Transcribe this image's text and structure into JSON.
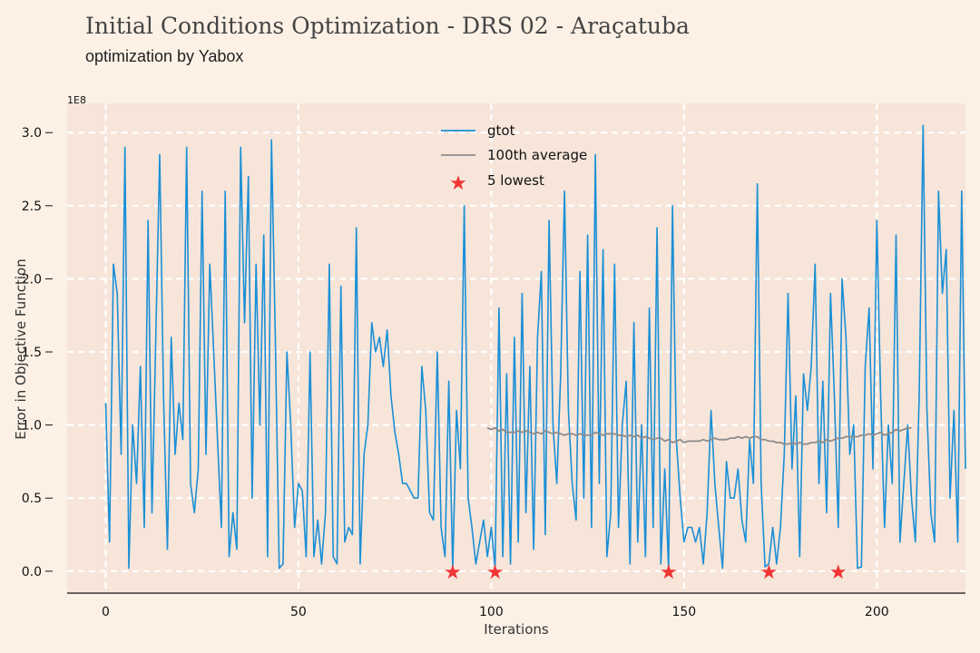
{
  "header": {
    "title": "Initial Conditions Optimization - DRS 02 - Araçatuba",
    "subtitle": "optimization by Yabox"
  },
  "chart_data": {
    "type": "line",
    "xlabel": "Iterations",
    "ylabel": "Error in Objective Function",
    "y_multiplier_label": "1E8",
    "xlim": [
      -10,
      223
    ],
    "ylim": [
      -0.15,
      3.2
    ],
    "x_ticks": [
      0,
      50,
      100,
      150,
      200
    ],
    "y_ticks": [
      0.0,
      0.5,
      1.0,
      1.5,
      2.0,
      2.5,
      3.0
    ],
    "x_tick_labels": [
      "0",
      "50",
      "100",
      "150",
      "200"
    ],
    "y_tick_labels": [
      "0.0",
      "0.5",
      "1.0",
      "1.5",
      "2.0",
      "2.5",
      "3.0"
    ],
    "grid": true,
    "legend_position": "top-center",
    "colors": {
      "gtot": "#1a8fd6",
      "average": "#8c8c8c",
      "lowest": "#f03535",
      "plot_bg": "#f7e5d9"
    },
    "series": [
      {
        "name": "gtot",
        "values": [
          1.15,
          0.2,
          2.1,
          1.9,
          0.8,
          2.9,
          0.02,
          1.0,
          0.6,
          1.4,
          0.3,
          2.4,
          0.4,
          1.6,
          2.85,
          1.2,
          0.15,
          1.6,
          0.8,
          1.15,
          0.9,
          2.9,
          0.6,
          0.4,
          0.7,
          2.6,
          0.8,
          2.1,
          1.5,
          0.9,
          0.3,
          2.6,
          0.1,
          0.4,
          0.15,
          2.9,
          1.7,
          2.7,
          0.5,
          2.1,
          1.0,
          2.3,
          0.1,
          2.95,
          1.6,
          0.02,
          0.05,
          1.5,
          1.0,
          0.3,
          0.6,
          0.55,
          0.1,
          1.5,
          0.1,
          0.35,
          0.05,
          0.4,
          2.1,
          0.1,
          0.05,
          1.95,
          0.2,
          0.3,
          0.25,
          2.35,
          0.05,
          0.8,
          1.0,
          1.7,
          1.5,
          1.6,
          1.4,
          1.65,
          1.2,
          0.95,
          0.8,
          0.6,
          0.6,
          0.55,
          0.5,
          0.5,
          1.4,
          1.1,
          0.4,
          0.35,
          1.5,
          0.3,
          0.1,
          1.3,
          0.01,
          1.1,
          0.7,
          2.5,
          0.5,
          0.3,
          0.05,
          0.2,
          0.35,
          0.1,
          0.3,
          0.02,
          1.8,
          0.1,
          1.35,
          0.05,
          1.6,
          0.2,
          1.9,
          0.4,
          1.4,
          0.15,
          1.6,
          2.05,
          0.25,
          2.4,
          1.0,
          0.6,
          1.35,
          2.6,
          1.1,
          0.6,
          0.35,
          2.05,
          0.5,
          2.3,
          0.3,
          2.85,
          0.6,
          2.2,
          0.1,
          0.4,
          2.1,
          0.3,
          1.0,
          1.3,
          0.05,
          1.7,
          0.2,
          1.0,
          0.1,
          1.8,
          0.3,
          2.35,
          0.05,
          0.7,
          0.01,
          2.5,
          0.9,
          0.5,
          0.2,
          0.3,
          0.3,
          0.2,
          0.3,
          0.05,
          0.4,
          1.1,
          0.6,
          0.3,
          0.02,
          0.75,
          0.5,
          0.5,
          0.7,
          0.35,
          0.2,
          0.9,
          0.6,
          2.65,
          0.6,
          0.03,
          0.05,
          0.3,
          0.05,
          0.3,
          0.8,
          1.9,
          0.7,
          1.2,
          0.1,
          1.35,
          1.1,
          1.4,
          2.1,
          0.6,
          1.3,
          0.4,
          1.9,
          1.2,
          0.3,
          2.0,
          1.6,
          0.8,
          1.0,
          0.02,
          0.03,
          1.4,
          1.8,
          0.7,
          2.4,
          1.2,
          0.3,
          1.0,
          0.6,
          2.3,
          0.2,
          0.6,
          1.0,
          0.5,
          0.2,
          1.2,
          3.05,
          1.1,
          0.4,
          0.2,
          2.6,
          1.9,
          2.2,
          0.5,
          1.1,
          0.2,
          2.6,
          0.7
        ]
      },
      {
        "name": "100th average",
        "x_start": 99,
        "values": [
          0.98,
          0.97,
          0.98,
          0.96,
          0.97,
          0.95,
          0.95,
          0.95,
          0.96,
          0.95,
          0.96,
          0.95,
          0.94,
          0.95,
          0.94,
          0.96,
          0.95,
          0.94,
          0.95,
          0.94,
          0.93,
          0.94,
          0.94,
          0.93,
          0.94,
          0.93,
          0.93,
          0.93,
          0.95,
          0.94,
          0.93,
          0.94,
          0.94,
          0.94,
          0.93,
          0.93,
          0.92,
          0.93,
          0.92,
          0.93,
          0.91,
          0.92,
          0.91,
          0.9,
          0.91,
          0.91,
          0.89,
          0.9,
          0.88,
          0.89,
          0.9,
          0.88,
          0.89,
          0.89,
          0.89,
          0.89,
          0.9,
          0.89,
          0.9,
          0.91,
          0.9,
          0.9,
          0.9,
          0.91,
          0.91,
          0.92,
          0.91,
          0.92,
          0.91,
          0.92,
          0.92,
          0.9,
          0.9,
          0.89,
          0.89,
          0.88,
          0.88,
          0.87,
          0.87,
          0.88,
          0.87,
          0.88,
          0.87,
          0.87,
          0.88,
          0.88,
          0.89,
          0.88,
          0.9,
          0.89,
          0.9,
          0.91,
          0.91,
          0.92,
          0.92,
          0.92,
          0.92,
          0.93,
          0.93,
          0.94,
          0.93,
          0.94,
          0.95,
          0.93,
          0.94,
          0.95,
          0.97,
          0.96,
          0.97,
          0.98,
          0.98
        ]
      }
    ],
    "lowest": {
      "name": "5 lowest",
      "points": [
        [
          90,
          0.0
        ],
        [
          101,
          0.0
        ],
        [
          146,
          0.0
        ],
        [
          172,
          0.0
        ],
        [
          190,
          0.0
        ]
      ]
    }
  }
}
